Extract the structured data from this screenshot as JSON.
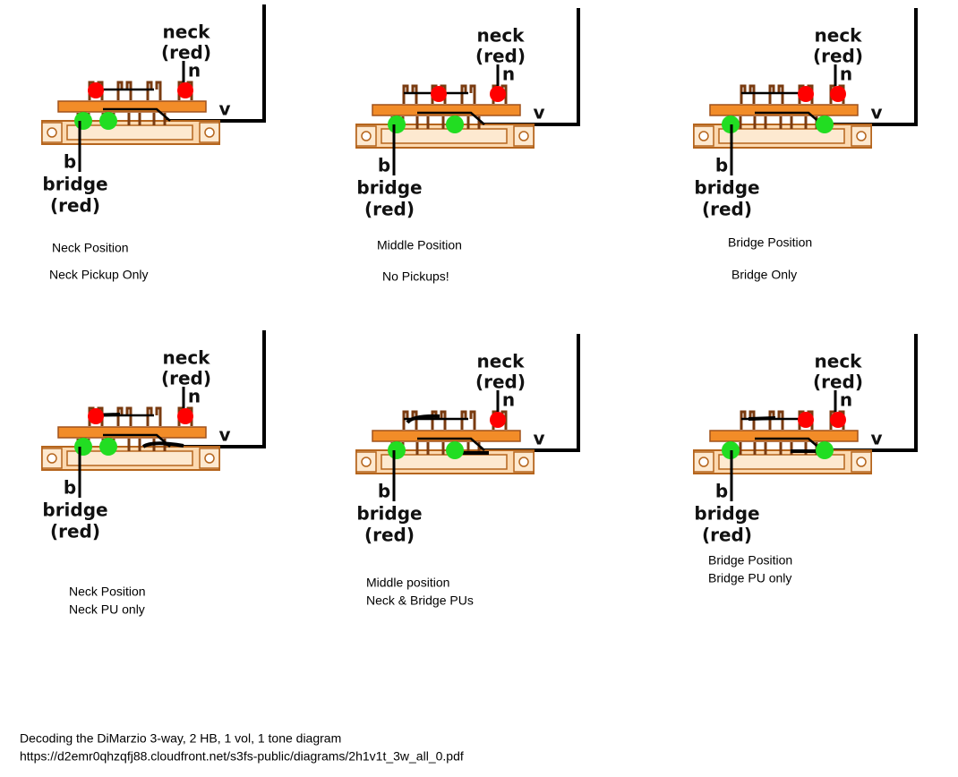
{
  "panels": [
    {
      "neck": "neck",
      "neck_color": "(red)",
      "n": "n",
      "v": "v",
      "b": "b",
      "bridge": "bridge",
      "bridge_color": "(red)",
      "caption": [
        "Neck Position",
        "Neck Pickup Only"
      ]
    },
    {
      "neck": "neck",
      "neck_color": "(red)",
      "n": "n",
      "v": "v",
      "b": "b",
      "bridge": "bridge",
      "bridge_color": "(red)",
      "caption": [
        "Middle Position",
        "No Pickups!"
      ]
    },
    {
      "neck": "neck",
      "neck_color": "(red)",
      "n": "n",
      "v": "v",
      "b": "b",
      "bridge": "bridge",
      "bridge_color": "(red)",
      "caption": [
        "Bridge Position",
        "Bridge Only"
      ]
    },
    {
      "neck": "neck",
      "neck_color": "(red)",
      "n": "n",
      "v": "v",
      "b": "b",
      "bridge": "bridge",
      "bridge_color": "(red)",
      "caption": [
        "Neck Position",
        "Neck PU only"
      ]
    },
    {
      "neck": "neck",
      "neck_color": "(red)",
      "n": "n",
      "v": "v",
      "b": "b",
      "bridge": "bridge",
      "bridge_color": "(red)",
      "caption": [
        "Middle position",
        "Neck & Bridge PUs"
      ]
    },
    {
      "neck": "neck",
      "neck_color": "(red)",
      "n": "n",
      "v": "v",
      "b": "b",
      "bridge": "bridge",
      "bridge_color": "(red)",
      "caption": [
        "Bridge Position",
        "Bridge PU only"
      ]
    }
  ],
  "footer": [
    "Decoding the DiMarzio 3-way, 2 HB, 1 vol, 1 tone diagram",
    "https://d2emr0qhzqfj88.cloudfront.net/s3fs-public/diagrams/2h1v1t_3w_all_0.pdf"
  ]
}
